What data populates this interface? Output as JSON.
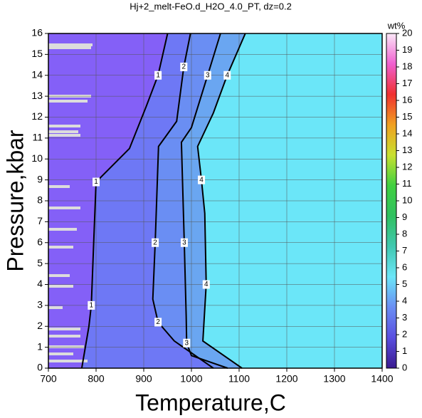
{
  "chart_data": {
    "type": "contour",
    "title": "Hj+2_melt-FeO.d_H2O_4.0_PT, dz=0.2",
    "x_label": "Temperature,C",
    "y_label": "Pressure,kbar",
    "xlim": [
      700,
      1400
    ],
    "ylim": [
      0,
      16
    ],
    "xticks": [
      700,
      800,
      900,
      1000,
      1100,
      1200,
      1300,
      1400
    ],
    "yticks": [
      0,
      1,
      2,
      3,
      4,
      5,
      6,
      7,
      8,
      9,
      10,
      11,
      12,
      13,
      14,
      15,
      16
    ],
    "grid": true,
    "contours": [
      {
        "label": "1",
        "x": [
          950,
          930,
          905,
          870,
          800,
          795,
          790,
          785,
          770
        ],
        "y": [
          16,
          14,
          12.5,
          10.5,
          8.9,
          6,
          3,
          2,
          0
        ]
      },
      {
        "label": "2",
        "x": [
          998,
          984,
          969,
          931,
          924,
          919,
          930,
          964,
          1046
        ],
        "y": [
          16,
          14.4,
          11.8,
          10.6,
          6,
          3.3,
          2.2,
          1.3,
          0
        ]
      },
      {
        "label": "3",
        "x": [
          1061,
          1034,
          1000,
          979,
          985,
          989,
          990,
          1000,
          1076
        ],
        "y": [
          16,
          14,
          11.5,
          10.8,
          6,
          2.5,
          1.2,
          0.6,
          0
        ]
      },
      {
        "label": "4",
        "x": [
          1113,
          1075,
          1046,
          1013,
          1021,
          1028,
          1031,
          1024,
          1106
        ],
        "y": [
          16,
          14,
          12.2,
          10.6,
          9,
          7.4,
          4,
          1.3,
          0
        ]
      }
    ],
    "band_colors": [
      "#8460f7",
      "#6e78f5",
      "#6a8ef3",
      "#6aa6f1",
      "#6be6f8"
    ],
    "colorbar": {
      "label": "wt%",
      "lim": [
        0,
        20
      ],
      "ticks": [
        0,
        1,
        2,
        3,
        4,
        5,
        6,
        7,
        8,
        9,
        10,
        11,
        12,
        13,
        14,
        15,
        16,
        17,
        18,
        19,
        20
      ],
      "colors": [
        "#3a1a8f",
        "#5a4fe0",
        "#6a8ef3",
        "#6be6f8",
        "#40c8b0",
        "#30c060",
        "#40d040",
        "#c8e030",
        "#f0a020",
        "#f03030",
        "#f060d0",
        "#fbe8f8"
      ]
    }
  }
}
